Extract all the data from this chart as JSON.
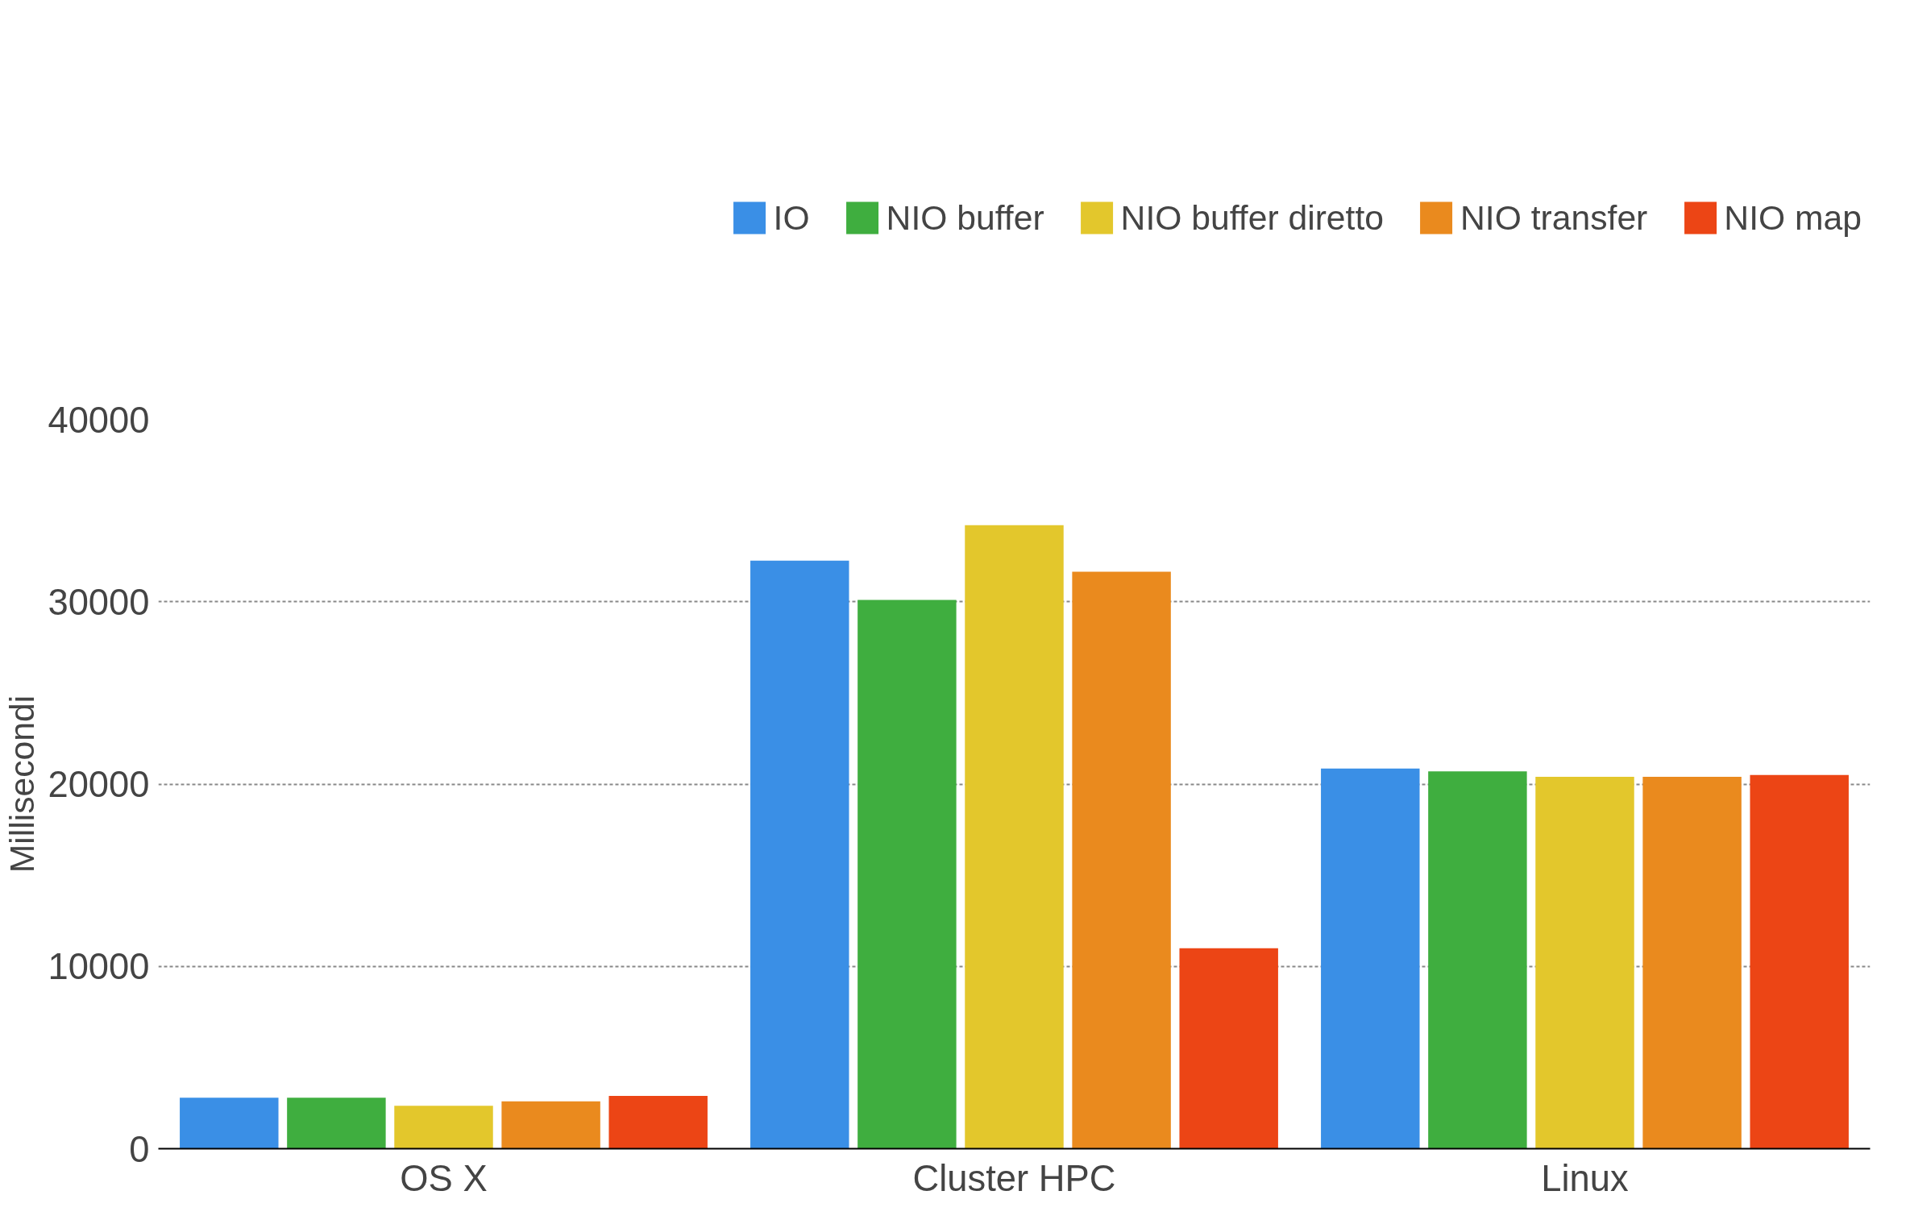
{
  "chart_data": {
    "type": "bar",
    "ylabel": "Millisecondi",
    "categories": [
      "OS X",
      "Cluster HPC",
      "Linux"
    ],
    "series": [
      {
        "name": "IO",
        "color": "#3a8fe6",
        "values": [
          2800,
          32250,
          20850
        ]
      },
      {
        "name": "NIO buffer",
        "color": "#3fae3f",
        "values": [
          2800,
          30100,
          20700
        ]
      },
      {
        "name": "NIO buffer diretto",
        "color": "#e3c72c",
        "values": [
          2350,
          34200,
          20400
        ]
      },
      {
        "name": "NIO transfer",
        "color": "#ea8a1e",
        "values": [
          2600,
          31650,
          20400
        ]
      },
      {
        "name": "NIO map",
        "color": "#ec4515",
        "values": [
          2900,
          11000,
          20500
        ]
      }
    ],
    "ylim": [
      0,
      40000
    ],
    "yticks": [
      0,
      10000,
      20000,
      30000,
      40000
    ],
    "grid": "y",
    "legend": "top"
  }
}
